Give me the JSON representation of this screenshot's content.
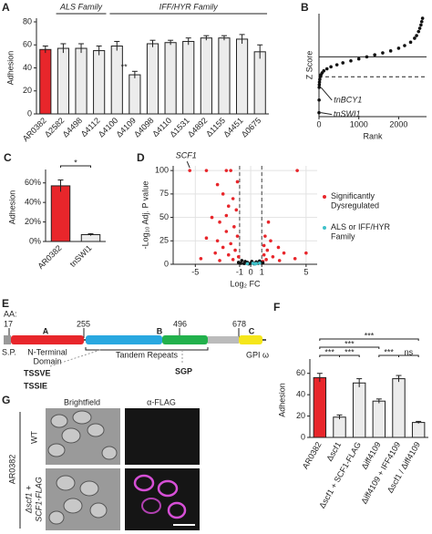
{
  "panel_labels": [
    "A",
    "B",
    "C",
    "D",
    "E",
    "F",
    "G"
  ],
  "chart_data": [
    {
      "type": "bar",
      "ylabel": "Adhesion",
      "categories": [
        "AR0382",
        "Δ2582",
        "Δ4498",
        "Δ4112",
        "Δ4100",
        "Δ4109",
        "Δ4098",
        "Δ4110",
        "Δ1531",
        "Δ4892",
        "Δ1155",
        "Δ4451",
        "Δ0675"
      ],
      "values": [
        56,
        57,
        57,
        55,
        59,
        34,
        61,
        62,
        63,
        66,
        66,
        65,
        54
      ],
      "errors": [
        3,
        4,
        4,
        4,
        4,
        3,
        3,
        2,
        3,
        2,
        2,
        4,
        6
      ],
      "colors": [
        "#e8262b",
        "#ececec",
        "#ececec",
        "#ececec",
        "#ececec",
        "#ececec",
        "#ececec",
        "#ececec",
        "#ececec",
        "#ececec",
        "#ececec",
        "#ececec",
        "#ececec"
      ],
      "ylim": [
        0,
        80
      ],
      "yticks": [
        0,
        20,
        40,
        60,
        80
      ],
      "annotations": [
        null,
        null,
        null,
        null,
        null,
        "**",
        null,
        null,
        null,
        null,
        null,
        null,
        null
      ],
      "groups": [
        {
          "label": "ALS Family",
          "members": [
            "Δ2582",
            "Δ4498",
            "Δ4112"
          ]
        },
        {
          "label": "IFF/HYR Family",
          "members": [
            "Δ4100",
            "Δ4109",
            "Δ4098",
            "Δ4110",
            "Δ1531",
            "Δ4892",
            "Δ1155",
            "Δ4451",
            "Δ0675"
          ]
        }
      ]
    },
    {
      "type": "scatter",
      "xlabel": "Rank",
      "ylabel": "Z Score",
      "series": [
        {
          "color": "#111111",
          "x": [
            1,
            3,
            5,
            8,
            12,
            20,
            30,
            50,
            80,
            120,
            200,
            300,
            450,
            600,
            800,
            1000,
            1200,
            1400,
            1600,
            1800,
            2000,
            2150,
            2300,
            2400,
            2450,
            2500,
            2530,
            2560,
            2580,
            2600
          ],
          "y": [
            -8.4,
            -6.5,
            -4.6,
            -4.2,
            -3.8,
            -3.4,
            -3.0,
            -2.7,
            -2.4,
            -2.1,
            -1.8,
            -1.5,
            -1.2,
            -0.9,
            -0.6,
            -0.3,
            0,
            0.3,
            0.6,
            0.9,
            1.3,
            1.7,
            2.2,
            2.8,
            3.2,
            3.8,
            4.3,
            4.8,
            5.3,
            5.8
          ]
        }
      ],
      "xlim": [
        0,
        2700
      ],
      "ylim": [
        -9,
        6.5
      ],
      "xticks": [
        0,
        1000,
        2000
      ],
      "hlines": [
        {
          "value": 0,
          "style": "solid"
        },
        {
          "value": -3,
          "style": "dashed"
        }
      ],
      "annotations": [
        {
          "text": "tnBCY1",
          "x": 5,
          "y": -4.6
        },
        {
          "text": "tnSWI1",
          "x": 1,
          "y": -8.4
        }
      ]
    },
    {
      "type": "bar",
      "ylabel": "Adhesion",
      "categories": [
        "AR0382",
        "tnSWI1"
      ],
      "values": [
        57,
        7
      ],
      "errors": [
        6,
        1
      ],
      "colors": [
        "#e8262b",
        "#ececec"
      ],
      "ylim": [
        0,
        70
      ],
      "yticks": [
        {
          "value": 0,
          "label": "0%"
        },
        {
          "value": 20,
          "label": "20%"
        },
        {
          "value": 40,
          "label": "40%"
        },
        {
          "value": 60,
          "label": "60%"
        }
      ],
      "brackets": [
        {
          "from": "AR0382",
          "to": "tnSWI1",
          "label": "*"
        }
      ]
    },
    {
      "type": "scatter",
      "xlabel": "Log₂ FC",
      "ylabel": "-Log₁₀ Adj. P value",
      "grid": true,
      "series": [
        {
          "name": "Significantly Dysregulated",
          "color": "#e8262b",
          "x": [
            -5.5,
            -4,
            -2.2,
            -1.8,
            4.2,
            -3,
            -2.5,
            -1.6,
            -2,
            -1.3,
            -3.5,
            -2.8,
            -1.5,
            -2.2,
            -1.2,
            -4,
            -3,
            -1.8,
            -2.5,
            -1.4,
            -3.2,
            -2,
            -1.1,
            -4.5,
            -1.6,
            -2.8,
            1.3,
            1.8,
            1.2,
            2.5,
            1.5,
            3,
            1.2,
            2,
            4,
            1.4,
            2.6,
            1.1,
            5,
            1.6,
            -2.2,
            -1.2
          ],
          "y": [
            100,
            100,
            100,
            100,
            100,
            85,
            75,
            70,
            62,
            58,
            50,
            45,
            40,
            35,
            30,
            28,
            25,
            22,
            18,
            15,
            12,
            10,
            8,
            6,
            5,
            4,
            30,
            25,
            20,
            18,
            15,
            12,
            10,
            8,
            6,
            5,
            4,
            3,
            12,
            45,
            52,
            88
          ]
        },
        {
          "color": "#111111",
          "x": [
            -0.8,
            -0.5,
            -0.3,
            0,
            0.2,
            0.5,
            0.8,
            -0.9,
            0.3,
            0.7,
            -0.6,
            0.1,
            -0.2,
            0.9,
            -1.1,
            1.1
          ],
          "y": [
            4,
            3,
            2,
            1,
            1.5,
            2.5,
            3.5,
            1,
            0.5,
            1,
            0.8,
            3,
            0.4,
            2,
            2,
            1.5
          ]
        },
        {
          "name": "ALS or IFF/HYR Family",
          "color": "#3fc1c9",
          "x": [
            0.2,
            0.5,
            0.8,
            -0.3,
            0.4
          ],
          "y": [
            1,
            0.8,
            1.2,
            0.6,
            0.3
          ]
        }
      ],
      "xlim": [
        -7,
        6
      ],
      "ylim": [
        0,
        105
      ],
      "xticks": [
        -5,
        -1,
        0,
        1,
        5
      ],
      "yticks": [
        0,
        25,
        50,
        75,
        100
      ],
      "vlines": [
        {
          "value": -1,
          "style": "dashed"
        },
        {
          "value": 1,
          "style": "dashed"
        }
      ],
      "annotations": [
        {
          "text": "SCF1",
          "x": -5.5,
          "y": 100
        }
      ]
    },
    {
      "type": "bar",
      "ylabel": "Adhesion",
      "categories": [
        "AR0382",
        "Δscf1",
        "Δscf1 + SCF1-FLAG",
        "Δiff4109",
        "Δiff4109 + IFF4109",
        "Δscf1 / Δiff4109"
      ],
      "values": [
        56,
        19,
        51,
        34,
        55,
        14
      ],
      "errors": [
        4,
        2,
        4,
        2,
        3,
        1
      ],
      "colors": [
        "#e8262b",
        "#ececec",
        "#ececec",
        "#ececec",
        "#ececec",
        "#ececec"
      ],
      "ylim": [
        0,
        70
      ],
      "yticks": [
        0,
        20,
        40,
        60
      ],
      "brackets": [
        {
          "from": "AR0382",
          "to": "Δscf1 / Δiff4109",
          "label": "***"
        },
        {
          "from": "AR0382",
          "to": "Δiff4109",
          "label": "***"
        },
        {
          "from": "AR0382",
          "to": "Δscf1",
          "label": "***"
        },
        {
          "from": "Δscf1",
          "to": "Δscf1 + SCF1-FLAG",
          "label": "***"
        },
        {
          "from": "Δiff4109",
          "to": "Δiff4109 + IFF4109",
          "label": "***"
        },
        {
          "from": "Δiff4109 + IFF4109",
          "to": "Δscf1 / Δiff4109",
          "label": "ns"
        }
      ]
    }
  ],
  "diagram": {
    "aa_label": "AA:",
    "positions": [
      "17",
      "255",
      "496",
      "678"
    ],
    "domains": [
      "A",
      "B",
      "C"
    ],
    "signal": "S.P.",
    "n_terminal": [
      "N-Terminal",
      "Domain"
    ],
    "repeats": "Tandem Repeats",
    "gpi": "GPI ω",
    "logos": [
      "TSSVE",
      "TSSIE",
      "SGP"
    ]
  },
  "micrographs": {
    "columns": [
      "Brightfield",
      "α-FLAG"
    ],
    "strain": "AR0382",
    "rows": [
      [
        "WT"
      ],
      [
        "Δscf1 +",
        "SCF1-FLAG"
      ]
    ]
  }
}
